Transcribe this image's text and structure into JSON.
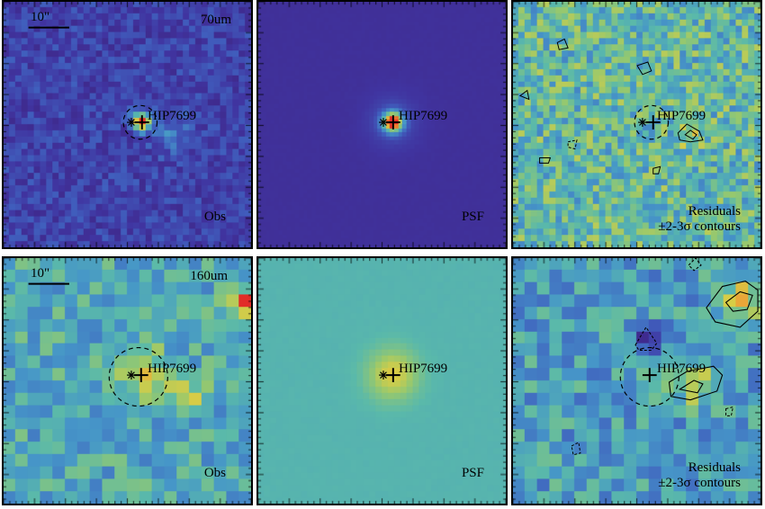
{
  "target_name": "HIP7699",
  "scale_bar": "10\"",
  "rows": [
    {
      "band": "70um",
      "panels": {
        "obs": "Obs",
        "psf": "PSF",
        "res_line1": "Residuals",
        "res_line2": "±2-3σ contours"
      }
    },
    {
      "band": "160um",
      "panels": {
        "obs": "Obs",
        "psf": "PSF",
        "res_line1": "Residuals",
        "res_line2": "±2-3σ contours"
      }
    }
  ],
  "colors": {
    "obs70_bg": "#3a3f9a",
    "psf70_bg": "#4049a6",
    "psf160_bg": "#5aa89a",
    "peak": "#e23b2a",
    "contour": "#000000"
  }
}
